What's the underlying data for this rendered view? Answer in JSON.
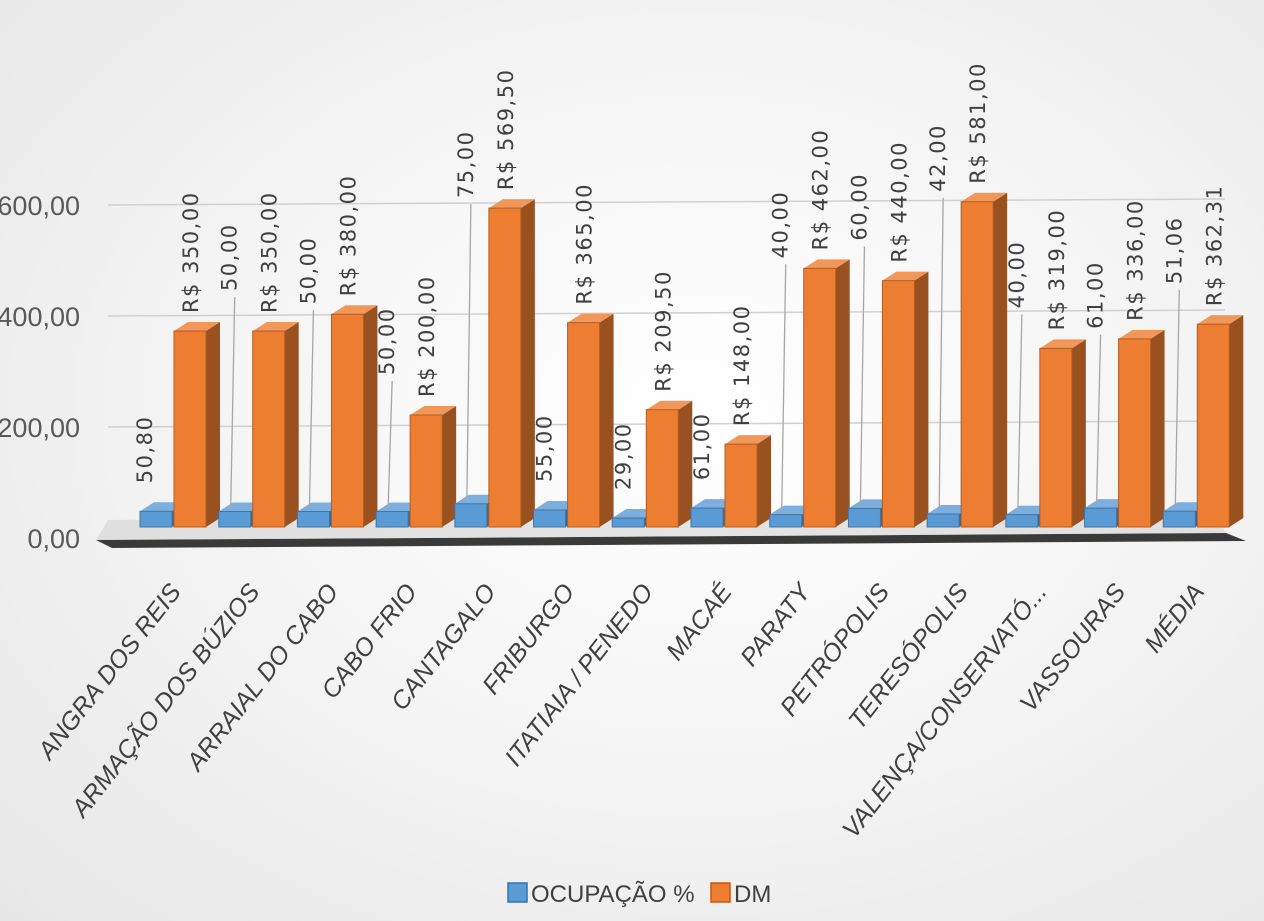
{
  "chart_data": {
    "type": "bar",
    "categories": [
      "ANGRA DOS REIS",
      "ARMAÇÃO DOS BÚZIOS",
      "ARRAIAL DO CABO",
      "CABO FRIO",
      "CANTAGALO",
      "FRIBURGO",
      "ITATIAIA / PENEDO",
      "MACAÉ",
      "PARATY",
      "PETRÓPOLIS",
      "TERESÓPOLIS",
      "VALENÇA/CONSERVATÓ...",
      "VASSOURAS",
      "MÉDIA"
    ],
    "series": [
      {
        "name": "OCUPAÇÃO %",
        "values": [
          50.8,
          50.0,
          50.0,
          50.0,
          75.0,
          55.0,
          29.0,
          61.0,
          40.0,
          60.0,
          42.0,
          40.0,
          61.0,
          51.06
        ],
        "labels": [
          "50,80",
          "50,00",
          "50,00",
          "50,00",
          "75,00",
          "55,00",
          "29,00",
          "61,00",
          "40,00",
          "60,00",
          "42,00",
          "40,00",
          "61,00",
          "51,06"
        ],
        "color": "#5B9BD5"
      },
      {
        "name": "DM",
        "values": [
          350.0,
          350.0,
          380.0,
          200.0,
          569.5,
          365.0,
          209.5,
          148.0,
          462.0,
          440.0,
          581.0,
          319.0,
          336.0,
          362.31
        ],
        "labels": [
          "R$ 350,00",
          "R$ 350,00",
          "R$ 380,00",
          "R$ 200,00",
          "R$ 569,50",
          "R$ 365,00",
          "R$ 209,50",
          "R$ 148,00",
          "R$ 462,00",
          "R$ 440,00",
          "R$ 581,00",
          "R$ 319,00",
          "R$ 336,00",
          "R$ 362,31"
        ],
        "color": "#ED7D31"
      }
    ],
    "yticks": [
      "0,00",
      "200,00",
      "400,00",
      "600,00"
    ],
    "ylim": [
      0,
      650
    ],
    "style": "3d-clustered-column",
    "legend_position": "bottom",
    "grid": true
  }
}
